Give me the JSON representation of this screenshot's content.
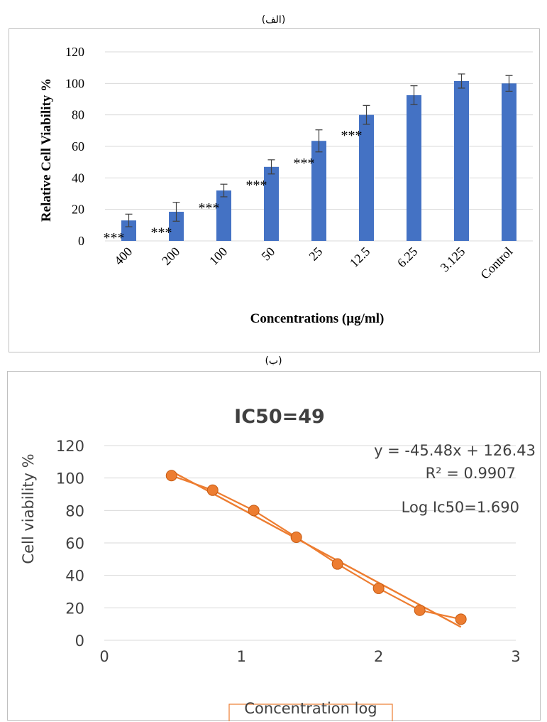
{
  "captions": {
    "a": "(الف)",
    "b": "(ب)"
  },
  "chart_data": [
    {
      "type": "bar",
      "title": "",
      "xlabel": "Concentrations (µg/ml)",
      "ylabel": "Relative Cell Viability %",
      "ylim": [
        0,
        120
      ],
      "yticks": [
        "0",
        "20",
        "40",
        "60",
        "80",
        "100",
        "120"
      ],
      "categories": [
        "400",
        "200",
        "100",
        "50",
        "25",
        "12.5",
        "6.25",
        "3.125",
        "Control"
      ],
      "values": [
        13,
        18.5,
        32,
        47,
        63.5,
        80,
        92.5,
        101.5,
        100
      ],
      "errors": [
        4,
        6,
        4,
        4.5,
        7,
        6,
        6,
        4.5,
        5
      ],
      "significance": [
        "***",
        "***",
        "***",
        "***",
        "***",
        "***",
        "",
        "",
        ""
      ],
      "grid": true,
      "bar_color": "#4472c4"
    },
    {
      "type": "scatter",
      "title": "IC50=49",
      "xlabel": "Concentration log",
      "ylabel": "Cell viability %",
      "xlim": [
        0,
        3
      ],
      "ylim": [
        0,
        120
      ],
      "xticks": [
        "0",
        "1",
        "2",
        "3"
      ],
      "yticks": [
        "0",
        "20",
        "40",
        "60",
        "80",
        "100",
        "120"
      ],
      "x": [
        0.49,
        0.79,
        1.09,
        1.4,
        1.7,
        2.0,
        2.3,
        2.6
      ],
      "y": [
        101.5,
        92.5,
        80,
        63.5,
        47,
        32,
        18.5,
        13
      ],
      "trendline": {
        "slope": -45.48,
        "intercept": 126.43
      },
      "annotations": [
        "y = -45.48x + 126.43",
        "R² = 0.9907",
        "Log Ic50=1.690"
      ],
      "grid": true,
      "point_color": "#ed7d31"
    }
  ]
}
